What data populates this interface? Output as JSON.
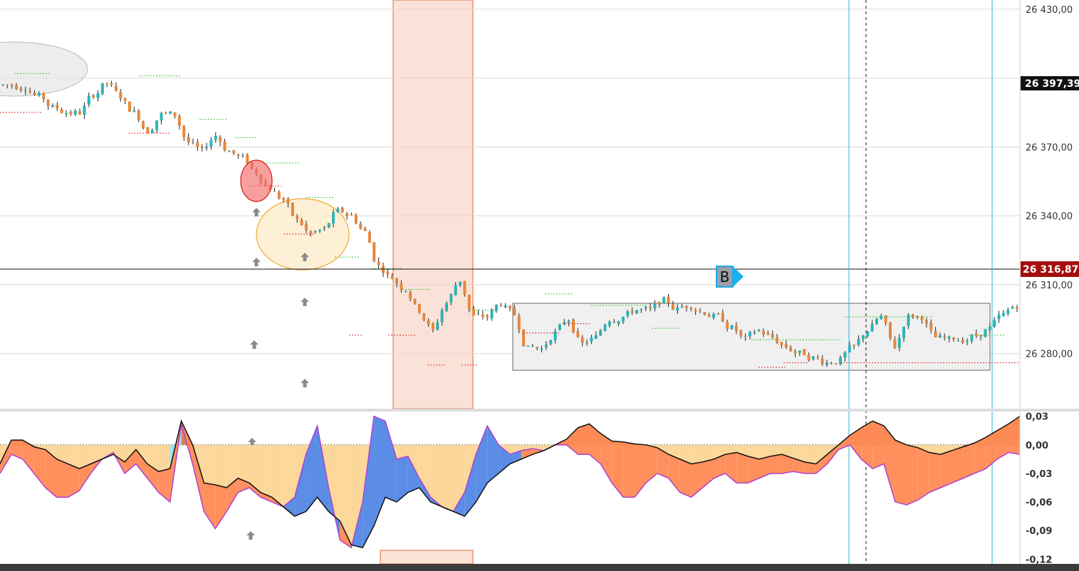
{
  "colors": {
    "up_candle": "#2bb5b5",
    "down_candle": "#e8863a",
    "wick": "#222222",
    "highlight_band": "#f6c9b8",
    "range_box": "#e9e9e9",
    "osc_positive": "#d9805a",
    "osc_negative": "#ff8a55",
    "osc_sand": "#fbd79a",
    "osc_blue": "#5b8de6",
    "osc_cyan": "#9fe3f2",
    "cyan_line": "#2ab4d8",
    "dark_red_label": "#a50e0e",
    "black_label": "#111111"
  },
  "price_axis": {
    "ticks": [
      "26 430,00",
      "26 370,00",
      "26 340,00",
      "26 310,00",
      "26 280,00"
    ],
    "current_price_label": "26 397,39",
    "line_price_label": "26 316,87"
  },
  "oscillator_axis": {
    "ticks": [
      "0,03",
      "0,00",
      "-0,03",
      "-0,06",
      "-0,09",
      "-0,12"
    ]
  },
  "marker": {
    "label": "B"
  },
  "chart_data": [
    {
      "type": "candlestick",
      "title": "",
      "y_axis_ticks": [
        26430,
        26370,
        26340,
        26310,
        26280
      ],
      "ylim": [
        26256,
        26434
      ],
      "grid": true,
      "horizontal_line": 26316.87,
      "current_price": 26397.39,
      "close_path": [
        26397,
        26396,
        26392,
        26387,
        26385,
        26385,
        26393,
        26398,
        26392,
        26385,
        26377,
        26384,
        26384,
        26372,
        26368,
        26375,
        26368,
        26365,
        26359,
        26352,
        26347,
        26338,
        26332,
        26334,
        26342,
        26340,
        26333,
        26318,
        26313,
        26308,
        26299,
        26290,
        26302,
        26312,
        26296,
        26296,
        26302,
        26297,
        26282,
        26282,
        26289,
        26295,
        26284,
        26287,
        26295,
        26296,
        26299,
        26299,
        26303,
        26299,
        26301,
        26298,
        26296,
        26291,
        26286,
        26290,
        26287,
        26283,
        26280,
        26278,
        26276,
        26277,
        26283,
        26290,
        26296,
        26283,
        26296,
        26296,
        26287,
        26286,
        26286,
        26288,
        26291,
        26297,
        26301
      ]
    },
    {
      "type": "area",
      "title": "",
      "y_axis_ticks": [
        0.03,
        0.0,
        -0.03,
        -0.06,
        -0.09,
        -0.12
      ],
      "ylim": [
        -0.125,
        0.035
      ],
      "series": [
        {
          "values": [
            -0.02,
            0.005,
            0.005,
            -0.002,
            -0.005,
            -0.015,
            -0.02,
            -0.025,
            -0.02,
            -0.015,
            -0.01,
            -0.018,
            -0.005,
            -0.02,
            -0.028,
            -0.025,
            0.025,
            0.0,
            -0.04,
            -0.042,
            -0.045,
            -0.035,
            -0.04,
            -0.05,
            -0.055,
            -0.065,
            -0.075,
            -0.07,
            -0.055,
            -0.07,
            -0.08,
            -0.105,
            -0.108,
            -0.085,
            -0.055,
            -0.06,
            -0.05,
            -0.045,
            -0.06,
            -0.065,
            -0.07,
            -0.075,
            -0.06,
            -0.04,
            -0.03,
            -0.02,
            -0.015,
            -0.01,
            -0.006,
            0.0,
            0.006,
            0.018,
            0.022,
            0.012,
            0.004,
            0.003,
            0.001,
            0.0,
            -0.003,
            -0.01,
            -0.015,
            -0.02,
            -0.018,
            -0.015,
            -0.01,
            -0.008,
            -0.012,
            -0.015,
            -0.012,
            -0.01,
            -0.014,
            -0.018,
            -0.02,
            -0.01,
            0.0,
            0.01,
            0.018,
            0.025,
            0.02,
            0.005,
            0.0,
            -0.003,
            -0.008,
            -0.01,
            -0.006,
            -0.002,
            0.002,
            0.008,
            0.015,
            0.022,
            0.03
          ]
        },
        {
          "values": [
            -0.03,
            -0.01,
            -0.015,
            -0.03,
            -0.045,
            -0.055,
            -0.055,
            -0.048,
            -0.03,
            -0.015,
            -0.008,
            -0.03,
            -0.02,
            -0.035,
            -0.05,
            -0.06,
            0.022,
            -0.02,
            -0.07,
            -0.088,
            -0.07,
            -0.05,
            -0.045,
            -0.055,
            -0.06,
            -0.065,
            -0.055,
            -0.01,
            0.02,
            -0.045,
            -0.1,
            -0.108,
            -0.06,
            0.03,
            0.025,
            -0.015,
            -0.012,
            -0.035,
            -0.055,
            -0.065,
            -0.07,
            -0.05,
            -0.01,
            0.02,
            0.0,
            -0.01,
            -0.006,
            -0.004,
            -0.006,
            0.0,
            0.0,
            -0.01,
            -0.01,
            -0.02,
            -0.04,
            -0.055,
            -0.055,
            -0.04,
            -0.03,
            -0.035,
            -0.05,
            -0.055,
            -0.045,
            -0.035,
            -0.03,
            -0.04,
            -0.04,
            -0.035,
            -0.03,
            -0.03,
            -0.028,
            -0.03,
            -0.03,
            -0.02,
            -0.005,
            0.0,
            -0.015,
            -0.025,
            -0.02,
            -0.06,
            -0.063,
            -0.058,
            -0.05,
            -0.045,
            -0.04,
            -0.035,
            -0.03,
            -0.025,
            -0.015,
            -0.008,
            -0.01
          ]
        }
      ]
    }
  ]
}
